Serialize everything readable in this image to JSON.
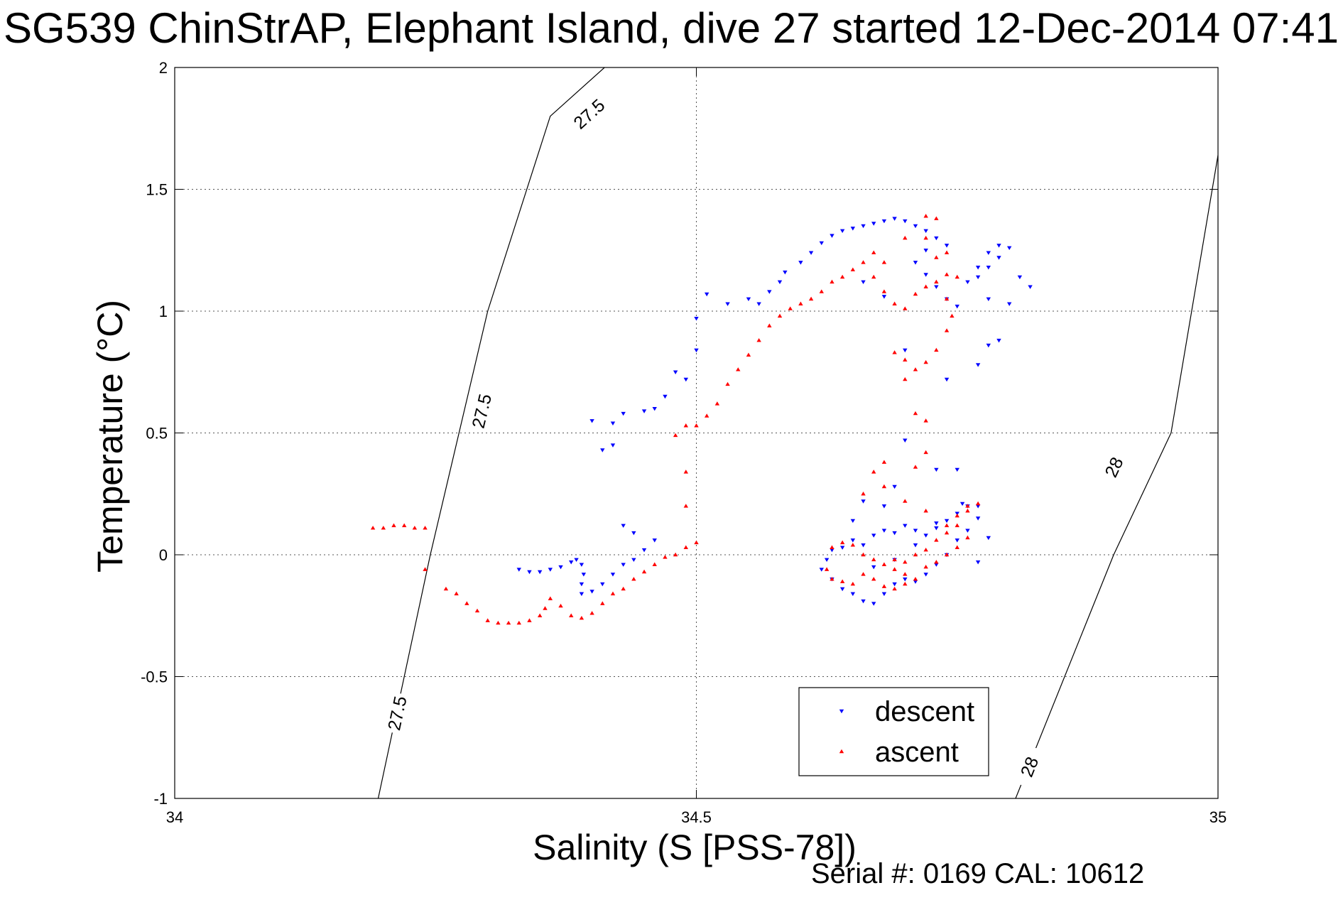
{
  "chart_data": {
    "type": "scatter",
    "title": "SG539 ChinStrAP, Elephant Island, dive 27 started 12-Dec-2014 07:41",
    "xlabel": "Salinity (S [PSS-78])",
    "ylabel": "Temperature (°C)",
    "xlim": [
      34,
      35
    ],
    "ylim": [
      -1,
      2
    ],
    "x_ticks": [
      34,
      34.5,
      35
    ],
    "x_tick_labels": [
      "34",
      "34.5",
      "35"
    ],
    "y_ticks": [
      -1,
      -0.5,
      0,
      0.5,
      1,
      1.5,
      2
    ],
    "y_tick_labels": [
      "-1",
      "-0.5",
      "0",
      "0.5",
      "1",
      "1.5",
      "2"
    ],
    "grid": true,
    "legend_position": "bottom-right",
    "contours": [
      {
        "level": "27.5",
        "points": [
          [
            34.195,
            -1.0
          ],
          [
            34.245,
            0.0
          ],
          [
            34.3,
            1.0
          ],
          [
            34.36,
            1.8
          ],
          [
            34.412,
            2.0
          ]
        ],
        "labels": [
          {
            "text": "27.5",
            "x": 34.213,
            "y": -0.65
          },
          {
            "text": "27.5",
            "x": 34.294,
            "y": 0.59
          },
          {
            "text": "27.5",
            "x": 34.397,
            "y": 1.81
          }
        ]
      },
      {
        "level": "28",
        "points": [
          [
            34.806,
            -1.0
          ],
          [
            34.9,
            0.0
          ],
          [
            34.955,
            0.5
          ],
          [
            35.0,
            1.64
          ]
        ],
        "labels": [
          {
            "text": "28",
            "x": 34.819,
            "y": -0.87
          },
          {
            "text": "28",
            "x": 34.9,
            "y": 0.36
          }
        ]
      }
    ],
    "series": [
      {
        "name": "descent",
        "color": "#0000ff",
        "marker": "triangle-down",
        "points": [
          [
            34.51,
            1.07
          ],
          [
            34.53,
            1.03
          ],
          [
            34.5,
            0.97
          ],
          [
            34.5,
            0.84
          ],
          [
            34.48,
            0.75
          ],
          [
            34.49,
            0.72
          ],
          [
            34.47,
            0.65
          ],
          [
            34.46,
            0.6
          ],
          [
            34.45,
            0.59
          ],
          [
            34.43,
            0.58
          ],
          [
            34.4,
            0.55
          ],
          [
            34.42,
            0.54
          ],
          [
            34.42,
            0.45
          ],
          [
            34.41,
            0.43
          ],
          [
            34.55,
            1.05
          ],
          [
            34.56,
            1.03
          ],
          [
            34.57,
            1.08
          ],
          [
            34.58,
            1.12
          ],
          [
            34.585,
            1.16
          ],
          [
            34.6,
            1.2
          ],
          [
            34.61,
            1.24
          ],
          [
            34.62,
            1.28
          ],
          [
            34.63,
            1.31
          ],
          [
            34.64,
            1.33
          ],
          [
            34.65,
            1.34
          ],
          [
            34.66,
            1.35
          ],
          [
            34.67,
            1.36
          ],
          [
            34.68,
            1.37
          ],
          [
            34.69,
            1.38
          ],
          [
            34.7,
            1.37
          ],
          [
            34.71,
            1.35
          ],
          [
            34.72,
            1.33
          ],
          [
            34.73,
            1.3
          ],
          [
            34.74,
            1.27
          ],
          [
            34.72,
            1.25
          ],
          [
            34.71,
            1.2
          ],
          [
            34.72,
            1.15
          ],
          [
            34.73,
            1.1
          ],
          [
            34.74,
            1.05
          ],
          [
            34.75,
            1.02
          ],
          [
            34.76,
            1.12
          ],
          [
            34.77,
            1.18
          ],
          [
            34.78,
            1.24
          ],
          [
            34.79,
            1.27
          ],
          [
            34.8,
            1.26
          ],
          [
            34.79,
            1.22
          ],
          [
            34.78,
            1.18
          ],
          [
            34.77,
            1.14
          ],
          [
            34.78,
            1.05
          ],
          [
            34.8,
            1.03
          ],
          [
            34.82,
            1.1
          ],
          [
            34.81,
            1.14
          ],
          [
            34.79,
            0.88
          ],
          [
            34.78,
            0.86
          ],
          [
            34.77,
            0.78
          ],
          [
            34.68,
            1.06
          ],
          [
            34.66,
            1.12
          ],
          [
            34.7,
            0.84
          ],
          [
            34.74,
            0.72
          ],
          [
            34.33,
            -0.06
          ],
          [
            34.34,
            -0.07
          ],
          [
            34.35,
            -0.07
          ],
          [
            34.36,
            -0.06
          ],
          [
            34.37,
            -0.05
          ],
          [
            34.38,
            -0.03
          ],
          [
            34.385,
            -0.02
          ],
          [
            34.39,
            -0.04
          ],
          [
            34.392,
            -0.08
          ],
          [
            34.39,
            -0.12
          ],
          [
            34.39,
            -0.16
          ],
          [
            34.4,
            -0.15
          ],
          [
            34.41,
            -0.12
          ],
          [
            34.42,
            -0.08
          ],
          [
            34.43,
            -0.04
          ],
          [
            34.44,
            -0.02
          ],
          [
            34.45,
            0.02
          ],
          [
            34.46,
            0.06
          ],
          [
            34.43,
            0.12
          ],
          [
            34.44,
            0.09
          ],
          [
            34.7,
            0.47
          ],
          [
            34.73,
            0.35
          ],
          [
            34.75,
            0.35
          ],
          [
            34.76,
            0.2
          ],
          [
            34.77,
            0.2
          ],
          [
            34.755,
            0.21
          ],
          [
            34.75,
            0.17
          ],
          [
            34.74,
            0.14
          ],
          [
            34.73,
            0.11
          ],
          [
            34.72,
            0.08
          ],
          [
            34.71,
            0.1
          ],
          [
            34.7,
            0.12
          ],
          [
            34.69,
            0.09
          ],
          [
            34.68,
            0.1
          ],
          [
            34.67,
            0.08
          ],
          [
            34.66,
            0.04
          ],
          [
            34.65,
            0.06
          ],
          [
            34.64,
            0.03
          ],
          [
            34.63,
            0.02
          ],
          [
            34.625,
            -0.02
          ],
          [
            34.62,
            -0.06
          ],
          [
            34.63,
            -0.1
          ],
          [
            34.64,
            -0.14
          ],
          [
            34.65,
            -0.16
          ],
          [
            34.66,
            -0.19
          ],
          [
            34.67,
            -0.2
          ],
          [
            34.68,
            -0.16
          ],
          [
            34.69,
            -0.12
          ],
          [
            34.7,
            -0.1
          ],
          [
            34.71,
            -0.11
          ],
          [
            34.72,
            -0.08
          ],
          [
            34.73,
            -0.04
          ],
          [
            34.74,
            0.0
          ],
          [
            34.75,
            0.06
          ],
          [
            34.76,
            0.1
          ],
          [
            34.77,
            0.15
          ],
          [
            34.78,
            0.07
          ],
          [
            34.77,
            -0.03
          ],
          [
            34.68,
            0.2
          ],
          [
            34.69,
            0.28
          ],
          [
            34.66,
            0.22
          ],
          [
            34.65,
            0.14
          ],
          [
            34.67,
            -0.05
          ],
          [
            34.69,
            -0.02
          ],
          [
            34.71,
            0.04
          ],
          [
            34.73,
            0.13
          ]
        ]
      },
      {
        "name": "ascent",
        "color": "#ff0000",
        "marker": "triangle-up",
        "points": [
          [
            34.19,
            0.11
          ],
          [
            34.2,
            0.11
          ],
          [
            34.21,
            0.12
          ],
          [
            34.22,
            0.12
          ],
          [
            34.23,
            0.11
          ],
          [
            34.24,
            0.11
          ],
          [
            34.24,
            -0.06
          ],
          [
            34.26,
            -0.14
          ],
          [
            34.27,
            -0.16
          ],
          [
            34.28,
            -0.2
          ],
          [
            34.29,
            -0.23
          ],
          [
            34.3,
            -0.27
          ],
          [
            34.31,
            -0.28
          ],
          [
            34.32,
            -0.28
          ],
          [
            34.33,
            -0.28
          ],
          [
            34.34,
            -0.27
          ],
          [
            34.35,
            -0.25
          ],
          [
            34.355,
            -0.22
          ],
          [
            34.36,
            -0.18
          ],
          [
            34.37,
            -0.21
          ],
          [
            34.38,
            -0.25
          ],
          [
            34.39,
            -0.26
          ],
          [
            34.4,
            -0.24
          ],
          [
            34.41,
            -0.2
          ],
          [
            34.42,
            -0.16
          ],
          [
            34.43,
            -0.14
          ],
          [
            34.44,
            -0.1
          ],
          [
            34.45,
            -0.07
          ],
          [
            34.46,
            -0.04
          ],
          [
            34.47,
            -0.01
          ],
          [
            34.48,
            0.0
          ],
          [
            34.49,
            0.03
          ],
          [
            34.5,
            0.05
          ],
          [
            34.49,
            0.2
          ],
          [
            34.49,
            0.34
          ],
          [
            34.48,
            0.49
          ],
          [
            34.49,
            0.53
          ],
          [
            34.5,
            0.53
          ],
          [
            34.51,
            0.57
          ],
          [
            34.52,
            0.62
          ],
          [
            34.53,
            0.7
          ],
          [
            34.54,
            0.76
          ],
          [
            34.55,
            0.82
          ],
          [
            34.56,
            0.88
          ],
          [
            34.57,
            0.94
          ],
          [
            34.58,
            0.98
          ],
          [
            34.59,
            1.01
          ],
          [
            34.6,
            1.03
          ],
          [
            34.61,
            1.05
          ],
          [
            34.62,
            1.08
          ],
          [
            34.63,
            1.12
          ],
          [
            34.64,
            1.14
          ],
          [
            34.65,
            1.17
          ],
          [
            34.66,
            1.2
          ],
          [
            34.67,
            1.14
          ],
          [
            34.68,
            1.08
          ],
          [
            34.69,
            1.03
          ],
          [
            34.7,
            1.01
          ],
          [
            34.71,
            1.07
          ],
          [
            34.72,
            1.1
          ],
          [
            34.73,
            1.12
          ],
          [
            34.74,
            1.15
          ],
          [
            34.75,
            1.14
          ],
          [
            34.74,
            1.05
          ],
          [
            34.745,
            0.98
          ],
          [
            34.74,
            0.92
          ],
          [
            34.73,
            0.84
          ],
          [
            34.72,
            0.79
          ],
          [
            34.71,
            0.76
          ],
          [
            34.7,
            0.8
          ],
          [
            34.69,
            0.83
          ],
          [
            34.7,
            0.72
          ],
          [
            34.71,
            0.58
          ],
          [
            34.72,
            0.55
          ],
          [
            34.73,
            1.22
          ],
          [
            34.74,
            1.24
          ],
          [
            34.73,
            1.38
          ],
          [
            34.72,
            1.39
          ],
          [
            34.72,
            1.3
          ],
          [
            34.7,
            1.3
          ],
          [
            34.68,
            1.2
          ],
          [
            34.67,
            1.24
          ],
          [
            34.72,
            0.42
          ],
          [
            34.71,
            0.36
          ],
          [
            34.68,
            0.38
          ],
          [
            34.67,
            0.34
          ],
          [
            34.66,
            0.25
          ],
          [
            34.68,
            0.28
          ],
          [
            34.7,
            0.22
          ],
          [
            34.72,
            0.18
          ],
          [
            34.74,
            0.12
          ],
          [
            34.75,
            0.16
          ],
          [
            34.76,
            0.2
          ],
          [
            34.77,
            0.21
          ],
          [
            34.76,
            0.18
          ],
          [
            34.75,
            0.12
          ],
          [
            34.74,
            0.09
          ],
          [
            34.73,
            0.06
          ],
          [
            34.72,
            0.02
          ],
          [
            34.71,
            0.0
          ],
          [
            34.7,
            -0.03
          ],
          [
            34.69,
            -0.06
          ],
          [
            34.68,
            -0.04
          ],
          [
            34.67,
            -0.02
          ],
          [
            34.66,
            0.0
          ],
          [
            34.65,
            0.04
          ],
          [
            34.64,
            0.05
          ],
          [
            34.63,
            0.03
          ],
          [
            34.625,
            -0.06
          ],
          [
            34.63,
            -0.1
          ],
          [
            34.64,
            -0.11
          ],
          [
            34.65,
            -0.12
          ],
          [
            34.66,
            -0.08
          ],
          [
            34.67,
            -0.1
          ],
          [
            34.68,
            -0.13
          ],
          [
            34.69,
            -0.14
          ],
          [
            34.7,
            -0.12
          ],
          [
            34.71,
            -0.1
          ],
          [
            34.72,
            -0.05
          ],
          [
            34.73,
            -0.03
          ],
          [
            34.74,
            0.0
          ],
          [
            34.75,
            0.03
          ],
          [
            34.76,
            0.07
          ],
          [
            34.7,
            -0.08
          ],
          [
            34.69,
            -0.02
          ]
        ]
      }
    ],
    "legend": [
      {
        "label": "descent",
        "color": "#0000ff",
        "marker": "triangle-down"
      },
      {
        "label": "ascent",
        "color": "#ff0000",
        "marker": "triangle-up"
      }
    ],
    "footer_text": "Serial #: 0169 CAL: 10612"
  }
}
